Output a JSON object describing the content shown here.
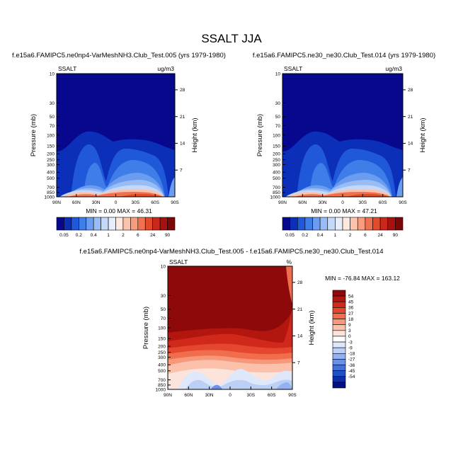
{
  "figure": {
    "title": "SSALT JJA"
  },
  "chart_data": [
    {
      "type": "heatmap",
      "title": "f.e15a6.FAMIPC5.ne0np4-VarMeshNH3.Club_Test.005 (yrs 1979-1980)",
      "left_label": "SSALT",
      "right_label": "ug/m3",
      "ylabel": "Pressure (mb)",
      "y2label": "Height (km)",
      "x_ticks": [
        "90N",
        "60N",
        "30N",
        "0",
        "30S",
        "60S",
        "90S"
      ],
      "y_ticks": [
        "10",
        "30",
        "50",
        "70",
        "100",
        "150",
        "200",
        "250",
        "300",
        "400",
        "500",
        "700",
        "850",
        "1000"
      ],
      "y2_ticks": [
        "28",
        "21",
        "14",
        "7"
      ],
      "stats": "MIN =   0.00  MAX =  46.31",
      "colorbar": {
        "orientation": "horizontal",
        "labels": [
          "0.05",
          "0.2",
          "0.4",
          "1",
          "2",
          "6",
          "24",
          "90"
        ],
        "colors": [
          "#08088f",
          "#0b2fb8",
          "#1f58d8",
          "#3f7ee8",
          "#6a9cf0",
          "#98bcf5",
          "#c4d8f8",
          "#e6eefb",
          "#fde8df",
          "#fbc3ad",
          "#f79c7d",
          "#ee7250",
          "#e24a2c",
          "#c9291a",
          "#a8120e",
          "#7d0606"
        ]
      }
    },
    {
      "type": "heatmap",
      "title": "f.e15a6.FAMIPC5.ne30_ne30.Club_Test.014 (yrs 1979-1980)",
      "left_label": "SSALT",
      "right_label": "ug/m3",
      "ylabel": "Pressure (mb)",
      "y2label": "Height (km)",
      "x_ticks": [
        "90N",
        "60N",
        "30N",
        "0",
        "30S",
        "60S",
        "90S"
      ],
      "y_ticks": [
        "10",
        "30",
        "50",
        "70",
        "100",
        "150",
        "200",
        "250",
        "300",
        "400",
        "500",
        "700",
        "850",
        "1000"
      ],
      "y2_ticks": [
        "28",
        "21",
        "14",
        "7"
      ],
      "stats": "MIN =   0.00  MAX =  47.21",
      "colorbar": {
        "orientation": "horizontal",
        "labels": [
          "0.05",
          "0.2",
          "0.4",
          "1",
          "2",
          "6",
          "24",
          "90"
        ],
        "colors": [
          "#08088f",
          "#0b2fb8",
          "#1f58d8",
          "#3f7ee8",
          "#6a9cf0",
          "#98bcf5",
          "#c4d8f8",
          "#e6eefb",
          "#fde8df",
          "#fbc3ad",
          "#f79c7d",
          "#ee7250",
          "#e24a2c",
          "#c9291a",
          "#a8120e",
          "#7d0606"
        ]
      }
    },
    {
      "type": "heatmap",
      "title": "f.e15a6.FAMIPC5.ne0np4-VarMeshNH3.Club_Test.005 - f.e15a6.FAMIPC5.ne30_ne30.Club_Test.014",
      "left_label": "SSALT",
      "right_label": "%",
      "ylabel": "Pressure (mb)",
      "y2label": "Height (km)",
      "x_ticks": [
        "90N",
        "60N",
        "30N",
        "0",
        "30S",
        "60S",
        "90S"
      ],
      "y_ticks": [
        "10",
        "30",
        "50",
        "70",
        "100",
        "150",
        "200",
        "250",
        "300",
        "400",
        "500",
        "700",
        "850",
        "1000"
      ],
      "y2_ticks": [
        "28",
        "21",
        "14",
        "7"
      ],
      "stats": "MIN = -76.84  MAX = 163.12",
      "colorbar": {
        "orientation": "vertical",
        "labels": [
          "54",
          "45",
          "36",
          "27",
          "18",
          "9",
          "3",
          "0",
          "-3",
          "-9",
          "-18",
          "-27",
          "-36",
          "-45",
          "-54"
        ],
        "colors": [
          "#8e0a0a",
          "#b3150f",
          "#d0281b",
          "#e4472d",
          "#f06e4e",
          "#f7987a",
          "#fbc1aa",
          "#fde4da",
          "#ffffff",
          "#dfe8fb",
          "#bcd0f6",
          "#93b2ef",
          "#6a91e6",
          "#4271d9",
          "#2250c6",
          "#0c2ea6",
          "#051180"
        ]
      }
    }
  ]
}
